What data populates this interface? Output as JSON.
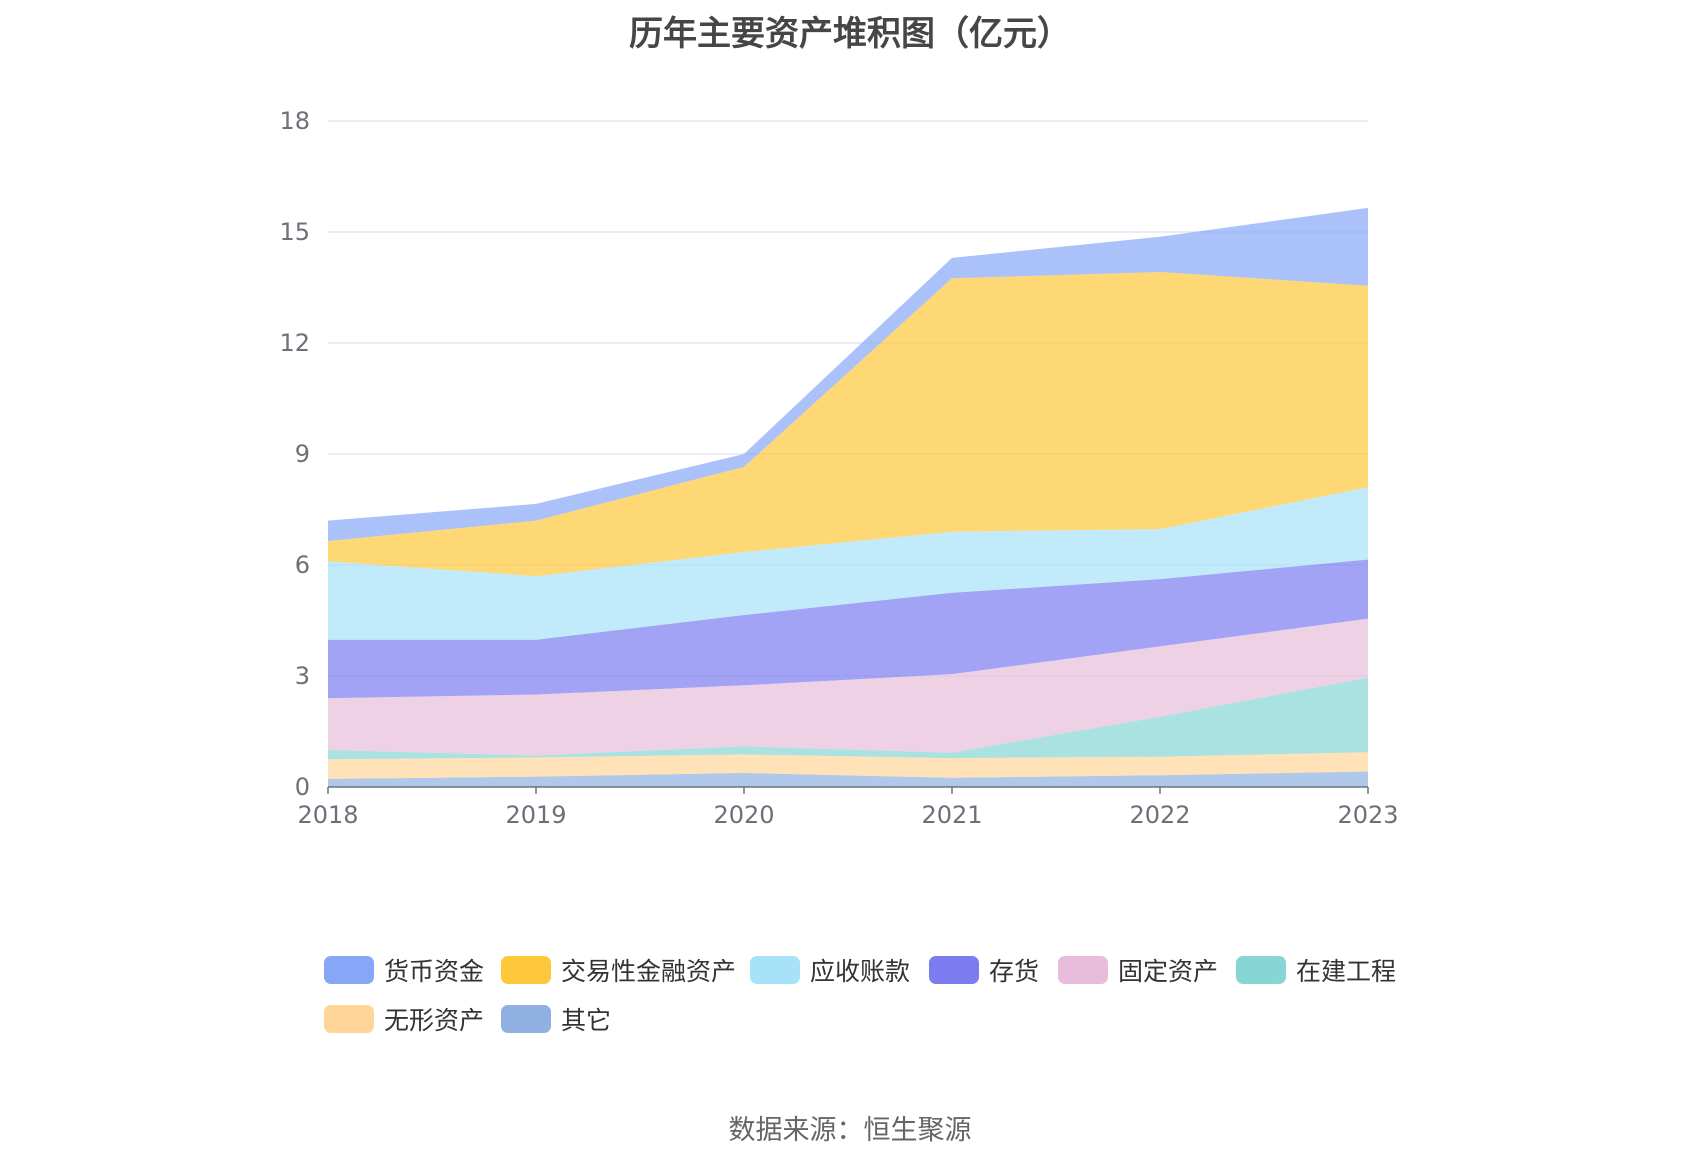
{
  "chart_data": {
    "type": "area",
    "stacked": true,
    "title": "历年主要资产堆积图（亿元）",
    "xlabel": "",
    "ylabel": "",
    "categories": [
      "2018",
      "2019",
      "2020",
      "2021",
      "2022",
      "2023"
    ],
    "ylim": [
      0,
      18
    ],
    "yticks": [
      0,
      3,
      6,
      9,
      12,
      15,
      18
    ],
    "grid": true,
    "legend_position": "bottom",
    "series": [
      {
        "name": "其它",
        "color": "#8fb0e0",
        "values": [
          0.22,
          0.28,
          0.38,
          0.25,
          0.32,
          0.42
        ]
      },
      {
        "name": "无形资产",
        "color": "#ffd59a",
        "values": [
          0.53,
          0.52,
          0.5,
          0.53,
          0.5,
          0.52
        ]
      },
      {
        "name": "在建工程",
        "color": "#86d6d6",
        "values": [
          0.25,
          0.05,
          0.22,
          0.15,
          1.08,
          2.02
        ]
      },
      {
        "name": "固定资产",
        "color": "#e8bddb",
        "values": [
          1.4,
          1.65,
          1.65,
          2.12,
          1.9,
          1.59
        ]
      },
      {
        "name": "存货",
        "color": "#7a7cf0",
        "values": [
          1.58,
          1.48,
          1.9,
          2.2,
          1.82,
          1.6
        ]
      },
      {
        "name": "应收账款",
        "color": "#a7e2f8",
        "values": [
          2.12,
          1.72,
          1.7,
          1.65,
          1.35,
          1.95
        ]
      },
      {
        "name": "交易性金融资产",
        "color": "#ffc73c",
        "values": [
          0.55,
          1.5,
          2.3,
          6.85,
          6.95,
          5.45
        ]
      },
      {
        "name": "货币资金",
        "color": "#88a6f8",
        "values": [
          0.55,
          0.45,
          0.35,
          0.55,
          0.95,
          2.1
        ]
      }
    ]
  },
  "legend": [
    {
      "name": "货币资金",
      "color": "#88a6f8"
    },
    {
      "name": "交易性金融资产",
      "color": "#ffc73c"
    },
    {
      "name": "应收账款",
      "color": "#a7e2f8"
    },
    {
      "name": "存货",
      "color": "#7a7cf0"
    },
    {
      "name": "固定资产",
      "color": "#e8bddb"
    },
    {
      "name": "在建工程",
      "color": "#86d6d6"
    },
    {
      "name": "无形资产",
      "color": "#ffd59a"
    },
    {
      "name": "其它",
      "color": "#8fb0e0"
    }
  ],
  "source": "数据来源：恒生聚源"
}
